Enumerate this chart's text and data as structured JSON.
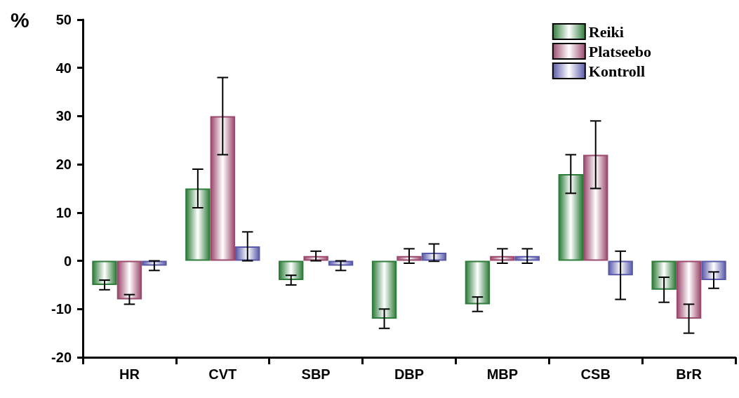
{
  "chart_data": {
    "type": "bar",
    "ylabel": "%",
    "categories": [
      "HR",
      "CVT",
      "SBP",
      "DBP",
      "MBP",
      "CSB",
      "BrR"
    ],
    "series": [
      {
        "name": "Reiki",
        "color": "#2e7d3a",
        "values": [
          -5,
          15,
          -4,
          -12,
          -9,
          18,
          -6
        ],
        "errors": [
          1,
          4,
          1,
          2,
          1.5,
          4,
          2.6
        ]
      },
      {
        "name": "Platseebo",
        "color": "#9c4a6e",
        "values": [
          -8,
          30,
          1,
          1,
          1,
          22,
          -12
        ],
        "errors": [
          1,
          8,
          1,
          1.5,
          1.5,
          7,
          3
        ]
      },
      {
        "name": "Kontroll",
        "color": "#5a5aaa",
        "values": [
          -1,
          3,
          -1,
          1.7,
          1,
          -3,
          -4
        ],
        "errors": [
          1,
          3,
          1,
          1.8,
          1.5,
          5,
          1.7
        ]
      }
    ],
    "ylim": [
      -20,
      50
    ],
    "yticks": [
      -20,
      -10,
      0,
      10,
      20,
      30,
      40,
      50
    ],
    "grid": false,
    "legend": "top right"
  }
}
